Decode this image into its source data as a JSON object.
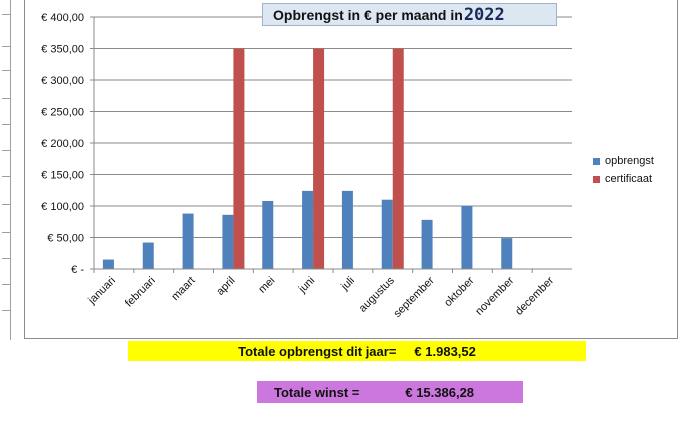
{
  "chart_data": {
    "type": "bar",
    "title": "Opbrengst in € per maand in",
    "title_year": "2022",
    "categories": [
      "januari",
      "februari",
      "maart",
      "april",
      "mei",
      "juni",
      "juli",
      "augustus",
      "september",
      "oktober",
      "november",
      "december"
    ],
    "series": [
      {
        "name": "opbrengst",
        "color": "#4f81bd",
        "values": [
          15,
          42,
          88,
          86,
          108,
          124,
          124,
          110,
          78,
          100,
          49,
          0
        ]
      },
      {
        "name": "certificaat",
        "color": "#c0504d",
        "values": [
          0,
          0,
          0,
          350,
          0,
          350,
          0,
          350,
          0,
          0,
          0,
          0
        ]
      }
    ],
    "y_ticks": [
      "€ -",
      "€ 50,00",
      "€ 100,00",
      "€ 150,00",
      "€ 200,00",
      "€ 250,00",
      "€ 300,00",
      "€ 350,00",
      "€ 400,00"
    ],
    "ylim": [
      0,
      400
    ],
    "grid": true,
    "legend_position": "right"
  },
  "totals": {
    "opbrengst_label": "Totale opbrengst dit jaar=",
    "opbrengst_value": "€ 1.983,52",
    "winst_label": "Totale winst =",
    "winst_value": "€ 15.386,28"
  }
}
